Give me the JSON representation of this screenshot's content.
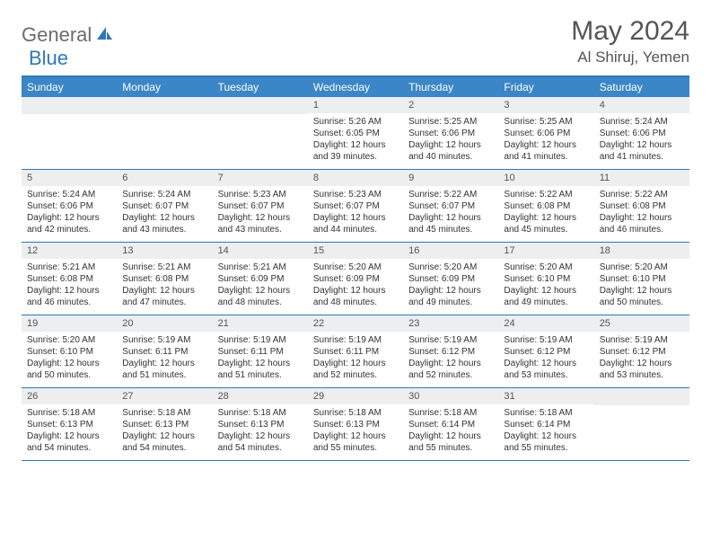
{
  "brand": {
    "part1": "General",
    "part2": "Blue"
  },
  "title": "May 2024",
  "location": "Al Shiruj, Yemen",
  "colors": {
    "header_bg": "#3b86c6",
    "border": "#2f78b7",
    "daynum_bg": "#eceeef",
    "text": "#333333",
    "title_text": "#555555"
  },
  "day_names": [
    "Sunday",
    "Monday",
    "Tuesday",
    "Wednesday",
    "Thursday",
    "Friday",
    "Saturday"
  ],
  "weeks": [
    [
      {
        "n": "",
        "sr": "",
        "ss": "",
        "dl": ""
      },
      {
        "n": "",
        "sr": "",
        "ss": "",
        "dl": ""
      },
      {
        "n": "",
        "sr": "",
        "ss": "",
        "dl": ""
      },
      {
        "n": "1",
        "sr": "Sunrise: 5:26 AM",
        "ss": "Sunset: 6:05 PM",
        "dl": "Daylight: 12 hours and 39 minutes."
      },
      {
        "n": "2",
        "sr": "Sunrise: 5:25 AM",
        "ss": "Sunset: 6:06 PM",
        "dl": "Daylight: 12 hours and 40 minutes."
      },
      {
        "n": "3",
        "sr": "Sunrise: 5:25 AM",
        "ss": "Sunset: 6:06 PM",
        "dl": "Daylight: 12 hours and 41 minutes."
      },
      {
        "n": "4",
        "sr": "Sunrise: 5:24 AM",
        "ss": "Sunset: 6:06 PM",
        "dl": "Daylight: 12 hours and 41 minutes."
      }
    ],
    [
      {
        "n": "5",
        "sr": "Sunrise: 5:24 AM",
        "ss": "Sunset: 6:06 PM",
        "dl": "Daylight: 12 hours and 42 minutes."
      },
      {
        "n": "6",
        "sr": "Sunrise: 5:24 AM",
        "ss": "Sunset: 6:07 PM",
        "dl": "Daylight: 12 hours and 43 minutes."
      },
      {
        "n": "7",
        "sr": "Sunrise: 5:23 AM",
        "ss": "Sunset: 6:07 PM",
        "dl": "Daylight: 12 hours and 43 minutes."
      },
      {
        "n": "8",
        "sr": "Sunrise: 5:23 AM",
        "ss": "Sunset: 6:07 PM",
        "dl": "Daylight: 12 hours and 44 minutes."
      },
      {
        "n": "9",
        "sr": "Sunrise: 5:22 AM",
        "ss": "Sunset: 6:07 PM",
        "dl": "Daylight: 12 hours and 45 minutes."
      },
      {
        "n": "10",
        "sr": "Sunrise: 5:22 AM",
        "ss": "Sunset: 6:08 PM",
        "dl": "Daylight: 12 hours and 45 minutes."
      },
      {
        "n": "11",
        "sr": "Sunrise: 5:22 AM",
        "ss": "Sunset: 6:08 PM",
        "dl": "Daylight: 12 hours and 46 minutes."
      }
    ],
    [
      {
        "n": "12",
        "sr": "Sunrise: 5:21 AM",
        "ss": "Sunset: 6:08 PM",
        "dl": "Daylight: 12 hours and 46 minutes."
      },
      {
        "n": "13",
        "sr": "Sunrise: 5:21 AM",
        "ss": "Sunset: 6:08 PM",
        "dl": "Daylight: 12 hours and 47 minutes."
      },
      {
        "n": "14",
        "sr": "Sunrise: 5:21 AM",
        "ss": "Sunset: 6:09 PM",
        "dl": "Daylight: 12 hours and 48 minutes."
      },
      {
        "n": "15",
        "sr": "Sunrise: 5:20 AM",
        "ss": "Sunset: 6:09 PM",
        "dl": "Daylight: 12 hours and 48 minutes."
      },
      {
        "n": "16",
        "sr": "Sunrise: 5:20 AM",
        "ss": "Sunset: 6:09 PM",
        "dl": "Daylight: 12 hours and 49 minutes."
      },
      {
        "n": "17",
        "sr": "Sunrise: 5:20 AM",
        "ss": "Sunset: 6:10 PM",
        "dl": "Daylight: 12 hours and 49 minutes."
      },
      {
        "n": "18",
        "sr": "Sunrise: 5:20 AM",
        "ss": "Sunset: 6:10 PM",
        "dl": "Daylight: 12 hours and 50 minutes."
      }
    ],
    [
      {
        "n": "19",
        "sr": "Sunrise: 5:20 AM",
        "ss": "Sunset: 6:10 PM",
        "dl": "Daylight: 12 hours and 50 minutes."
      },
      {
        "n": "20",
        "sr": "Sunrise: 5:19 AM",
        "ss": "Sunset: 6:11 PM",
        "dl": "Daylight: 12 hours and 51 minutes."
      },
      {
        "n": "21",
        "sr": "Sunrise: 5:19 AM",
        "ss": "Sunset: 6:11 PM",
        "dl": "Daylight: 12 hours and 51 minutes."
      },
      {
        "n": "22",
        "sr": "Sunrise: 5:19 AM",
        "ss": "Sunset: 6:11 PM",
        "dl": "Daylight: 12 hours and 52 minutes."
      },
      {
        "n": "23",
        "sr": "Sunrise: 5:19 AM",
        "ss": "Sunset: 6:12 PM",
        "dl": "Daylight: 12 hours and 52 minutes."
      },
      {
        "n": "24",
        "sr": "Sunrise: 5:19 AM",
        "ss": "Sunset: 6:12 PM",
        "dl": "Daylight: 12 hours and 53 minutes."
      },
      {
        "n": "25",
        "sr": "Sunrise: 5:19 AM",
        "ss": "Sunset: 6:12 PM",
        "dl": "Daylight: 12 hours and 53 minutes."
      }
    ],
    [
      {
        "n": "26",
        "sr": "Sunrise: 5:18 AM",
        "ss": "Sunset: 6:13 PM",
        "dl": "Daylight: 12 hours and 54 minutes."
      },
      {
        "n": "27",
        "sr": "Sunrise: 5:18 AM",
        "ss": "Sunset: 6:13 PM",
        "dl": "Daylight: 12 hours and 54 minutes."
      },
      {
        "n": "28",
        "sr": "Sunrise: 5:18 AM",
        "ss": "Sunset: 6:13 PM",
        "dl": "Daylight: 12 hours and 54 minutes."
      },
      {
        "n": "29",
        "sr": "Sunrise: 5:18 AM",
        "ss": "Sunset: 6:13 PM",
        "dl": "Daylight: 12 hours and 55 minutes."
      },
      {
        "n": "30",
        "sr": "Sunrise: 5:18 AM",
        "ss": "Sunset: 6:14 PM",
        "dl": "Daylight: 12 hours and 55 minutes."
      },
      {
        "n": "31",
        "sr": "Sunrise: 5:18 AM",
        "ss": "Sunset: 6:14 PM",
        "dl": "Daylight: 12 hours and 55 minutes."
      },
      {
        "n": "",
        "sr": "",
        "ss": "",
        "dl": ""
      }
    ]
  ]
}
